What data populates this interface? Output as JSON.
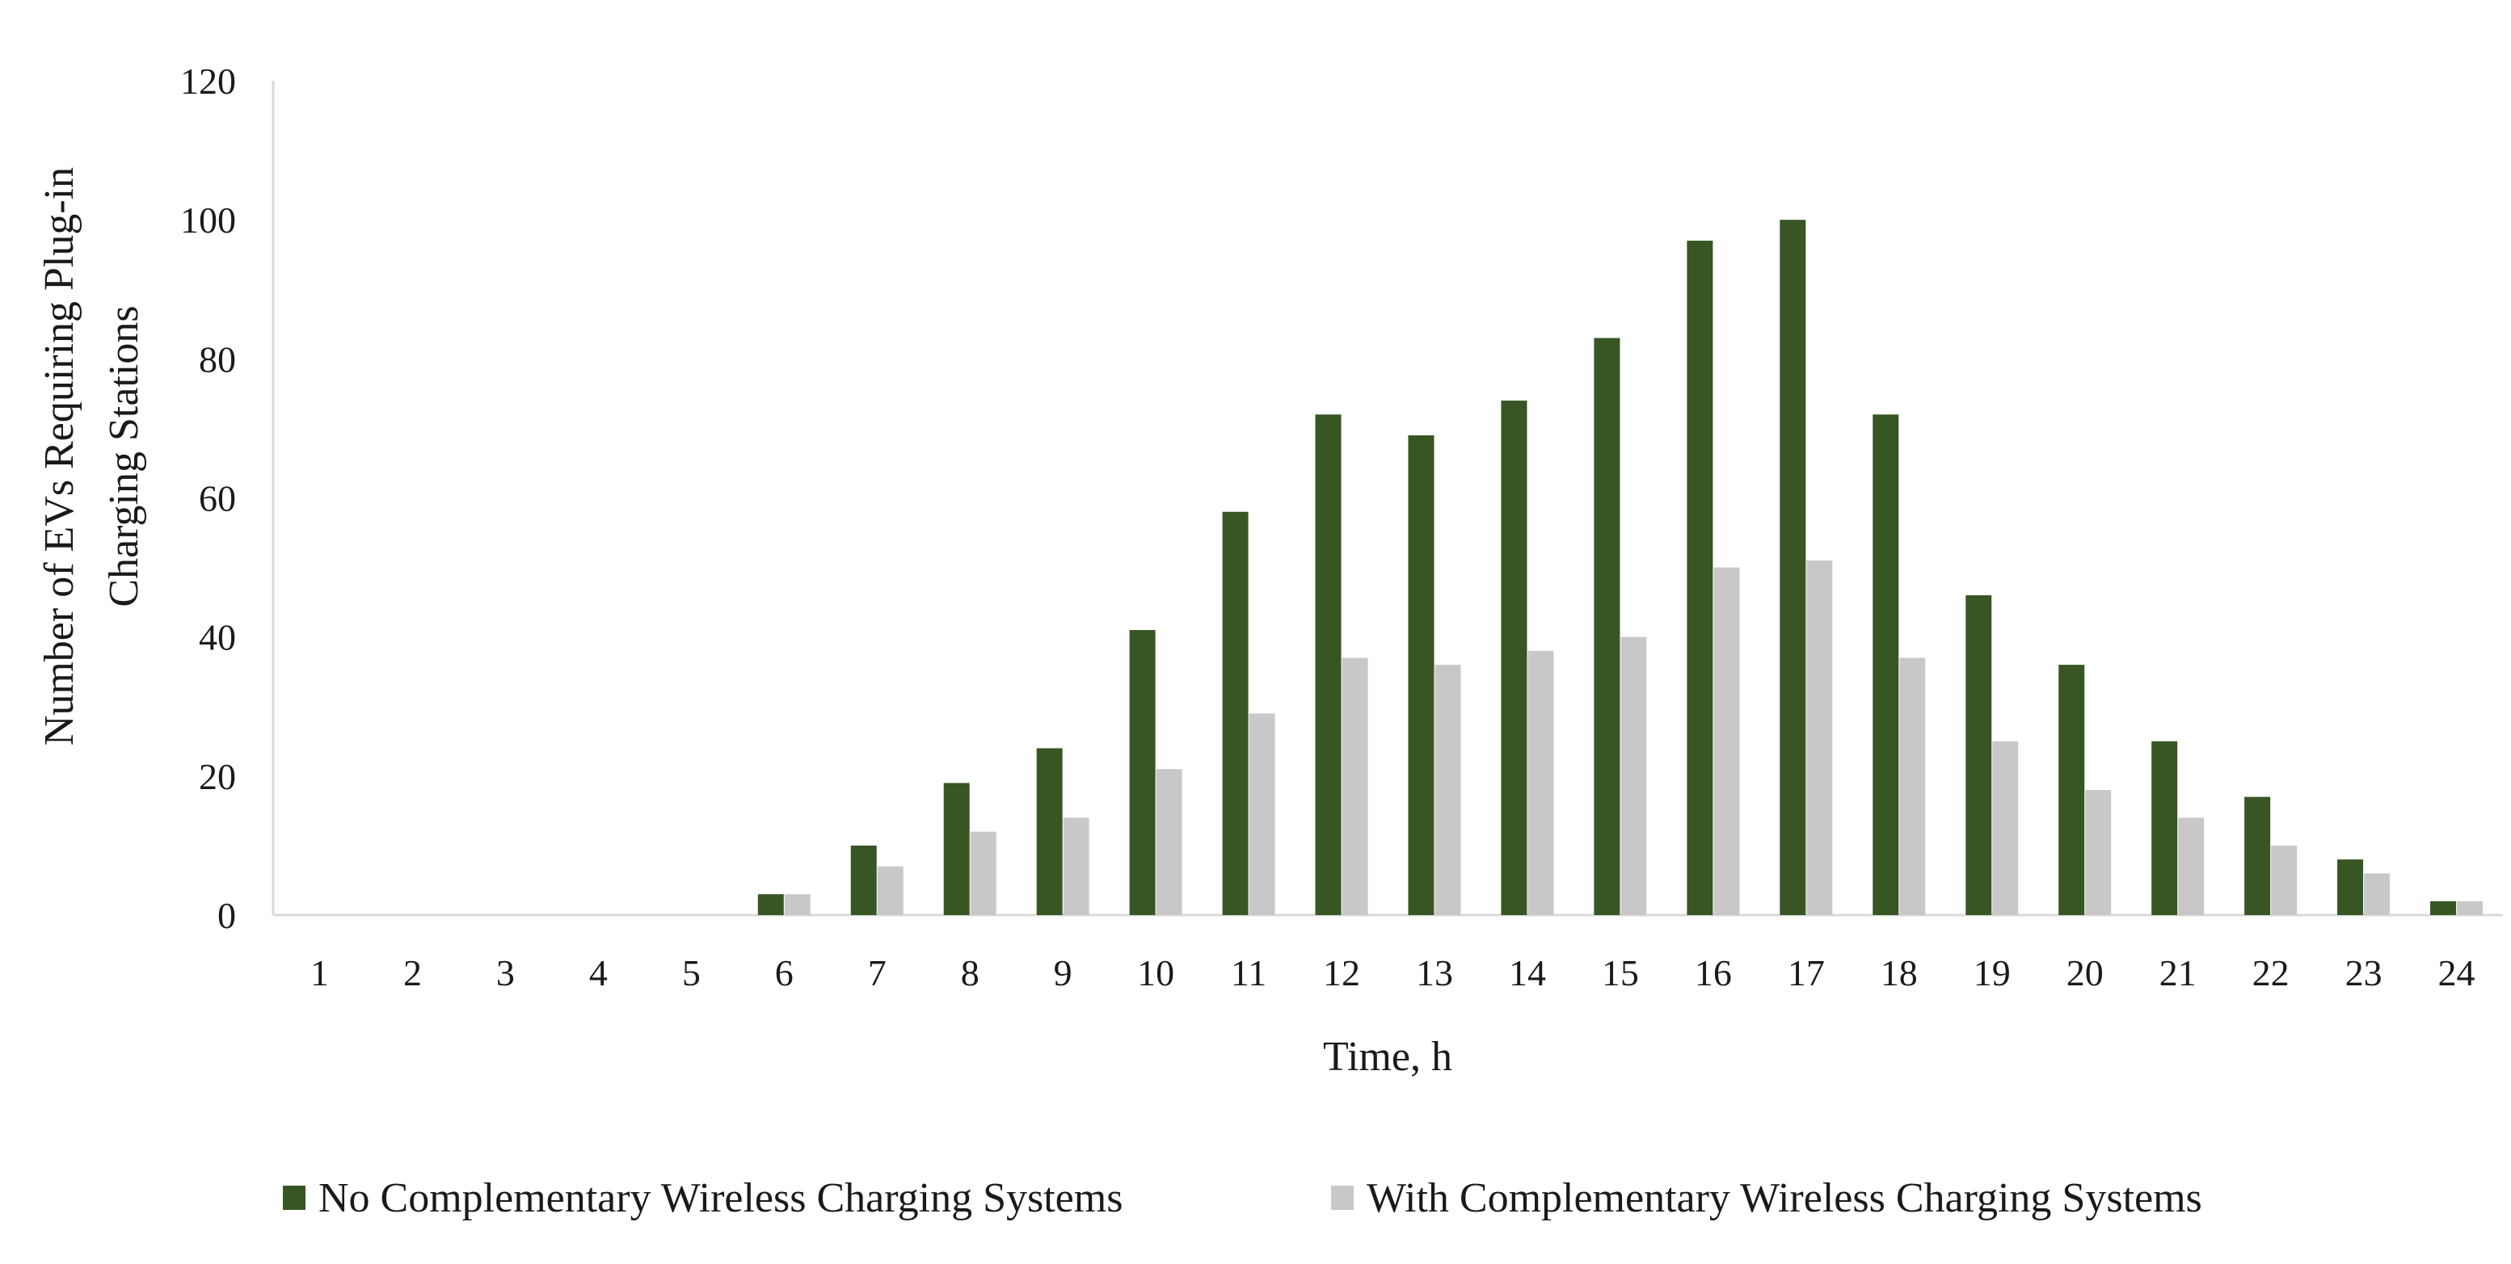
{
  "chart_data": {
    "type": "bar",
    "title": "",
    "xlabel": "Time, h",
    "ylabel_lines": [
      "Number of EVs Requiring Plug-in",
      "Charging Stations"
    ],
    "ylim": [
      0,
      120
    ],
    "yticks": [
      0,
      20,
      40,
      60,
      80,
      100,
      120
    ],
    "grid": false,
    "legend_position": "bottom",
    "categories": [
      "1",
      "2",
      "3",
      "4",
      "5",
      "6",
      "7",
      "8",
      "9",
      "10",
      "11",
      "12",
      "13",
      "14",
      "15",
      "16",
      "17",
      "18",
      "19",
      "20",
      "21",
      "22",
      "23",
      "24"
    ],
    "series": [
      {
        "name": "No Complementary Wireless Charging Systems",
        "color": "#375623",
        "values": [
          0,
          0,
          0,
          0,
          0,
          3,
          10,
          19,
          24,
          41,
          58,
          72,
          69,
          74,
          83,
          97,
          100,
          72,
          46,
          36,
          25,
          17,
          8,
          2
        ]
      },
      {
        "name": "With Complementary Wireless Charging Systems",
        "color": "#c8c8c8",
        "values": [
          0,
          0,
          0,
          0,
          0,
          3,
          7,
          12,
          14,
          21,
          29,
          37,
          36,
          38,
          40,
          50,
          51,
          37,
          25,
          18,
          14,
          10,
          6,
          2
        ]
      }
    ]
  }
}
